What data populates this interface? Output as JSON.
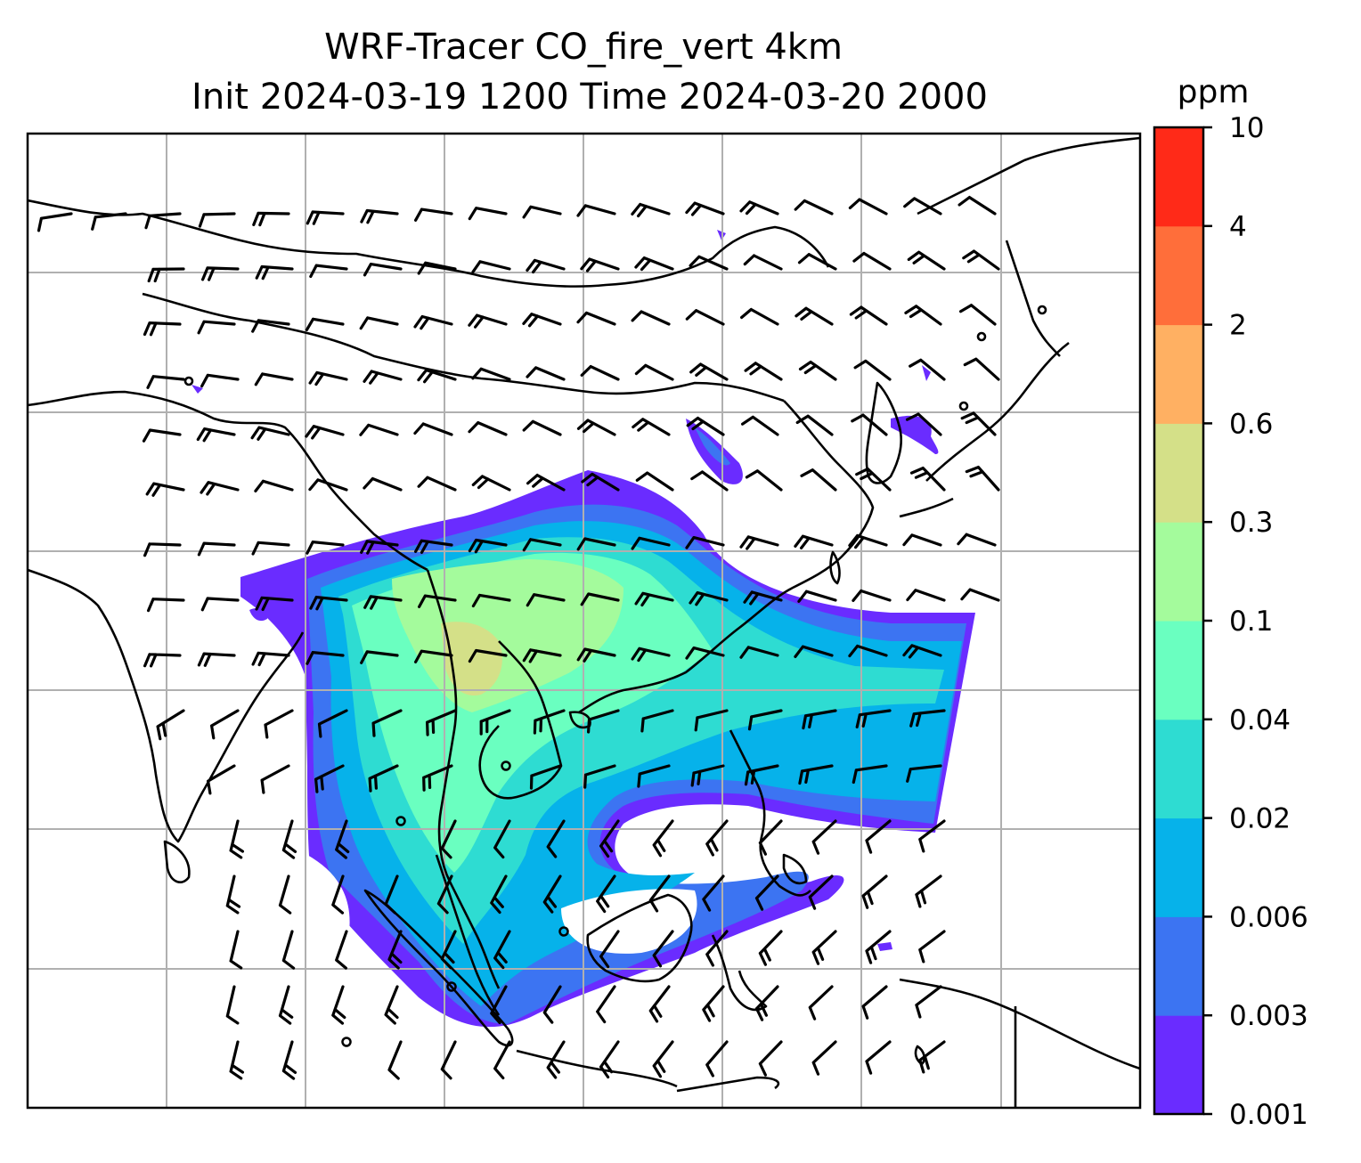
{
  "title_line1": "WRF-Tracer CO_fire_vert 4km",
  "title_line2": "Init 2024-03-19 1200 Time 2024-03-20 2000",
  "colorbar": {
    "unit": "ppm",
    "levels": [
      "0.001",
      "0.003",
      "0.006",
      "0.02",
      "0.04",
      "0.1",
      "0.3",
      "0.6",
      "2",
      "4",
      "10"
    ],
    "colors": [
      "#6a2cff",
      "#3c74f2",
      "#06b2ea",
      "#2edcd2",
      "#6affc0",
      "#a4fb9c",
      "#d4e088",
      "#ffb062",
      "#ff6e3a",
      "#ff2a18"
    ]
  },
  "chart_data": {
    "type": "heatmap",
    "variable": "CO_fire_vert",
    "unit": "ppm",
    "contour_levels": [
      0.001,
      0.003,
      0.006,
      0.02,
      0.04,
      0.1,
      0.3,
      0.6,
      2,
      4,
      10
    ],
    "overlay": "wind barbs",
    "grid": true
  }
}
